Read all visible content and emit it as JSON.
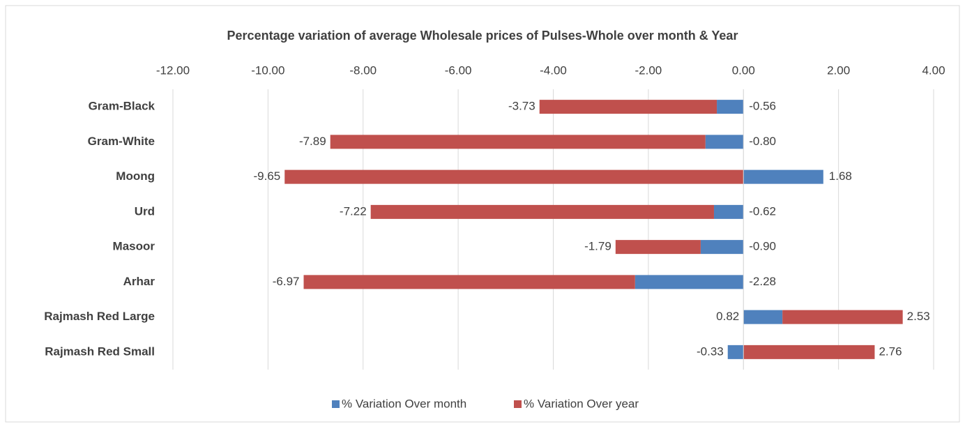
{
  "chart_data": {
    "type": "stacked-barh",
    "title": "Percentage variation of  average  Wholesale prices of Pulses-Whole over month & Year",
    "categories": [
      "Gram-Black",
      "Gram-White",
      "Moong",
      "Urd",
      "Masoor",
      "Arhar",
      "Rajmash Red Large",
      "Rajmash Red  Small"
    ],
    "series": [
      {
        "name": "% Variation Over month",
        "color": "#4f81bd",
        "values": [
          -0.56,
          -0.8,
          1.68,
          -0.62,
          -0.9,
          -2.28,
          0.82,
          -0.33
        ],
        "value_labels": [
          "-0.56",
          "-0.80",
          "1.68",
          "-0.62",
          "-0.90",
          "-2.28",
          "0.82",
          "-0.33"
        ]
      },
      {
        "name": "% Variation Over year",
        "color": "#c0504d",
        "values": [
          -3.73,
          -7.89,
          -9.65,
          -7.22,
          -1.79,
          -6.97,
          2.53,
          2.76
        ],
        "value_labels": [
          "-3.73",
          "-7.89",
          "-9.65",
          "-7.22",
          "-1.79",
          "-6.97",
          "2.53",
          "2.76"
        ]
      }
    ],
    "xlim": [
      -12,
      4
    ],
    "xticks": [
      {
        "value": -12,
        "label": "-12.00"
      },
      {
        "value": -10,
        "label": "-10.00"
      },
      {
        "value": -8,
        "label": "-8.00"
      },
      {
        "value": -6,
        "label": "-6.00"
      },
      {
        "value": -4,
        "label": "-4.00"
      },
      {
        "value": -2,
        "label": "-2.00"
      },
      {
        "value": 0,
        "label": "0.00"
      },
      {
        "value": 2,
        "label": "2.00"
      },
      {
        "value": 4,
        "label": "4.00"
      }
    ],
    "grid": true,
    "legend": "bottom"
  }
}
